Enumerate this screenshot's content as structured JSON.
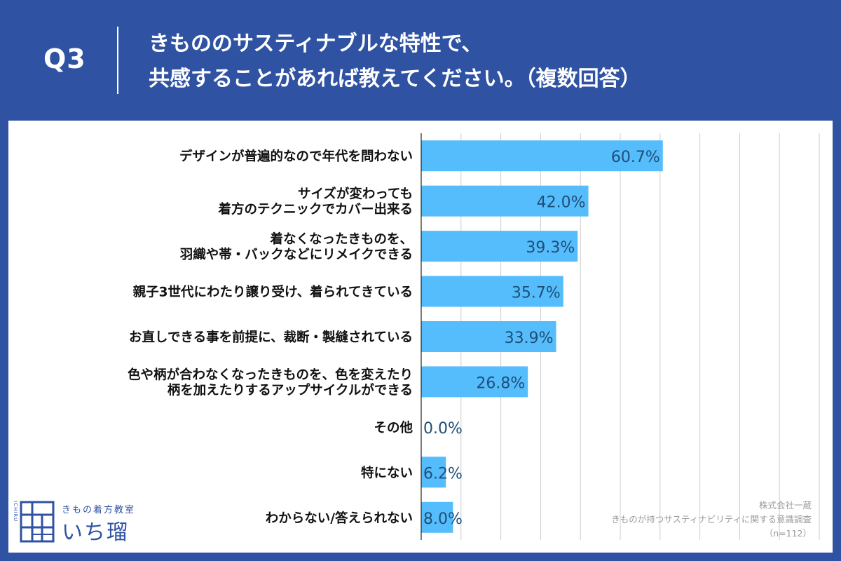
{
  "header": {
    "q_label": "Q3",
    "title_line1": "きもののサスティナブルな特性で、",
    "title_line2": "共感することがあれば教えてください。（複数回答）"
  },
  "colors": {
    "background": "#2f52a3",
    "bar": "#55bdfb",
    "value_text": "#1f4e79",
    "label_text": "#111111",
    "grid": "#cccccc"
  },
  "chart_data": {
    "type": "bar",
    "orientation": "horizontal",
    "unit": "%",
    "xlim": [
      0,
      100
    ],
    "grid": true,
    "categories": [
      [
        "デザインが普遍的なので年代を問わない"
      ],
      [
        "サイズが変わっても",
        "着方のテクニックでカバー出来る"
      ],
      [
        "着なくなったきものを、",
        "羽織や帯・バックなどにリメイクできる"
      ],
      [
        "親子3世代にわたり譲り受け、着られてきている"
      ],
      [
        "お直しできる事を前提に、裁断・製縫されている"
      ],
      [
        "色や柄が合わなくなったきものを、色を変えたり",
        "柄を加えたりするアップサイクルができる"
      ],
      [
        "その他"
      ],
      [
        "特にない"
      ],
      [
        "わからない/答えられない"
      ]
    ],
    "values": [
      60.7,
      42.0,
      39.3,
      35.7,
      33.9,
      26.8,
      0.0,
      6.2,
      8.0
    ],
    "value_labels": [
      "60.7%",
      "42.0%",
      "39.3%",
      "35.7%",
      "33.9%",
      "26.8%",
      "0.0%",
      "6.2%",
      "8.0%"
    ]
  },
  "logo": {
    "subtitle": "きもの着方教室",
    "name": "いち瑠",
    "vertical_text": "ICHIRU"
  },
  "source": {
    "company": "株式会社一蔵",
    "survey": "きものが持つサスティナビリティに関する意識調査",
    "sample": "（n=112）"
  }
}
